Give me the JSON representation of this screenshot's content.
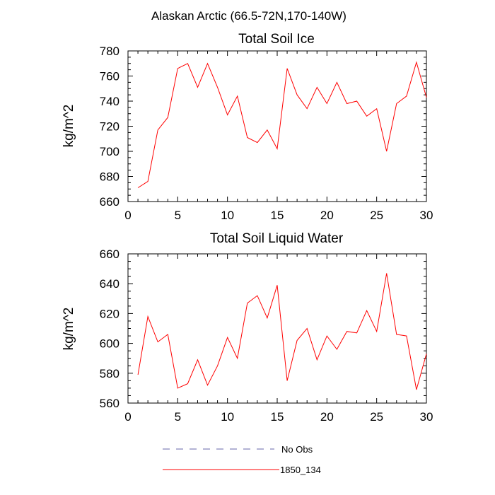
{
  "figure": {
    "suptitle": "Alaskan Arctic (66.5-72N,170-140W)"
  },
  "legend": {
    "entries": [
      {
        "label": "No Obs",
        "color": "#6666aa",
        "style": "dashed"
      },
      {
        "label": "1850_134",
        "color": "#ff0000",
        "style": "solid"
      }
    ]
  },
  "chart_data": [
    {
      "type": "line",
      "title": "Total Soil Ice",
      "xlabel": "",
      "ylabel": "kg/m^2",
      "xlim": [
        0,
        30
      ],
      "ylim": [
        660,
        780
      ],
      "xticks": [
        0,
        5,
        10,
        15,
        20,
        25,
        30
      ],
      "yticks": [
        660,
        680,
        700,
        720,
        740,
        760,
        780
      ],
      "grid": false,
      "series": [
        {
          "name": "1850_134",
          "color": "#ff0000",
          "x": [
            1,
            2,
            3,
            4,
            5,
            6,
            7,
            8,
            9,
            10,
            11,
            12,
            13,
            14,
            15,
            16,
            17,
            18,
            19,
            20,
            21,
            22,
            23,
            24,
            25,
            26,
            27,
            28,
            29,
            30
          ],
          "values": [
            671,
            676,
            717,
            727,
            766,
            770,
            751,
            770,
            751,
            729,
            744,
            711,
            707,
            717,
            702,
            766,
            745,
            734,
            751,
            738,
            755,
            738,
            740,
            728,
            734,
            700,
            738,
            744,
            771,
            743
          ]
        }
      ]
    },
    {
      "type": "line",
      "title": "Total Soil Liquid Water",
      "xlabel": "",
      "ylabel": "kg/m^2",
      "xlim": [
        0,
        30
      ],
      "ylim": [
        560,
        660
      ],
      "xticks": [
        0,
        5,
        10,
        15,
        20,
        25,
        30
      ],
      "yticks": [
        560,
        580,
        600,
        620,
        640,
        660
      ],
      "grid": false,
      "series": [
        {
          "name": "1850_134",
          "color": "#ff0000",
          "x": [
            1,
            2,
            3,
            4,
            5,
            6,
            7,
            8,
            9,
            10,
            11,
            12,
            13,
            14,
            15,
            16,
            17,
            18,
            19,
            20,
            21,
            22,
            23,
            24,
            25,
            26,
            27,
            28,
            29,
            30
          ],
          "values": [
            579,
            618,
            601,
            606,
            570,
            573,
            589,
            572,
            585,
            604,
            590,
            627,
            632,
            617,
            639,
            575,
            602,
            610,
            589,
            605,
            596,
            608,
            607,
            622,
            608,
            647,
            606,
            605,
            569,
            593
          ]
        }
      ]
    }
  ]
}
